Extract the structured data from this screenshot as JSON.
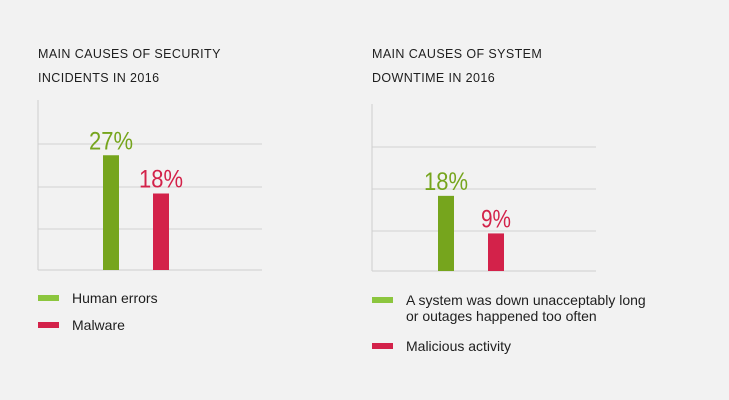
{
  "colors": {
    "green": "#76a51d",
    "red": "#d3224a",
    "green_swatch": "#8cc63e",
    "axis": "#cfcfcf",
    "grid": "#d2d2d2"
  },
  "chart_data": [
    {
      "type": "bar",
      "title_lines": [
        "MAIN CAUSES OF SECURITY",
        "INCIDENTS IN 2016"
      ],
      "categories": [
        "Human errors",
        "Malware"
      ],
      "values": [
        27,
        18
      ],
      "value_labels": [
        "27%",
        "18%"
      ],
      "ylim": [
        0,
        40
      ],
      "grid": true,
      "legend_position": "bottom",
      "legend": [
        "Human errors",
        "Malware"
      ]
    },
    {
      "type": "bar",
      "title_lines": [
        "MAIN CAUSES OF SYSTEM",
        "DOWNTIME IN 2016"
      ],
      "categories": [
        "A system was down unacceptably long or outages happened too often",
        "Malicious activity"
      ],
      "values": [
        18,
        9
      ],
      "value_labels": [
        "18%",
        "9%"
      ],
      "ylim": [
        0,
        40
      ],
      "grid": true,
      "legend_position": "bottom",
      "legend": [
        "A system was down unacceptably long",
        "Malicious activity"
      ],
      "legend_line2": "or outages happened too often"
    }
  ]
}
